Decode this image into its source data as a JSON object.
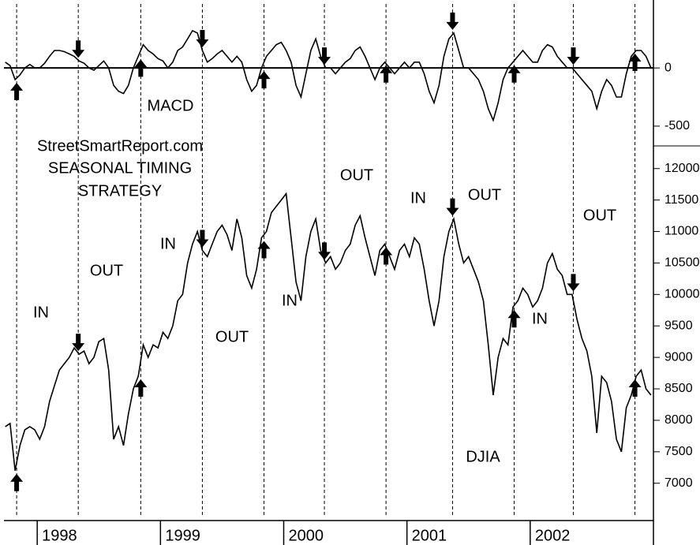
{
  "chart_data": {
    "type": "line",
    "annotations": [
      "StreetSmartReport.com",
      "SEASONAL TIMING",
      "STRATEGY",
      "IN",
      "OUT",
      "IN",
      "OUT",
      "IN",
      "OUT",
      "IN",
      "OUT",
      "IN",
      "OUT"
    ],
    "x": [
      1997.74,
      1997.78,
      1997.82,
      1997.86,
      1997.9,
      1997.94,
      1997.98,
      1998.02,
      1998.06,
      1998.1,
      1998.14,
      1998.18,
      1998.22,
      1998.26,
      1998.3,
      1998.34,
      1998.38,
      1998.42,
      1998.46,
      1998.5,
      1998.54,
      1998.58,
      1998.62,
      1998.66,
      1998.7,
      1998.74,
      1998.78,
      1998.82,
      1998.86,
      1998.9,
      1998.94,
      1998.98,
      1999.02,
      1999.06,
      1999.1,
      1999.14,
      1999.18,
      1999.22,
      1999.26,
      1999.3,
      1999.34,
      1999.38,
      1999.42,
      1999.46,
      1999.5,
      1999.54,
      1999.58,
      1999.62,
      1999.66,
      1999.7,
      1999.74,
      1999.78,
      1999.82,
      1999.86,
      1999.9,
      1999.94,
      1999.98,
      2000.02,
      2000.06,
      2000.1,
      2000.14,
      2000.18,
      2000.22,
      2000.26,
      2000.3,
      2000.34,
      2000.38,
      2000.42,
      2000.46,
      2000.5,
      2000.54,
      2000.58,
      2000.62,
      2000.66,
      2000.7,
      2000.74,
      2000.78,
      2000.82,
      2000.86,
      2000.9,
      2000.94,
      2000.98,
      2001.02,
      2001.06,
      2001.1,
      2001.14,
      2001.18,
      2001.22,
      2001.26,
      2001.3,
      2001.34,
      2001.38,
      2001.42,
      2001.46,
      2001.5,
      2001.54,
      2001.58,
      2001.62,
      2001.66,
      2001.7,
      2001.74,
      2001.78,
      2001.82,
      2001.86,
      2001.9,
      2001.94,
      2001.98,
      2002.02,
      2002.06,
      2002.1,
      2002.14,
      2002.18,
      2002.22,
      2002.26,
      2002.3,
      2002.34,
      2002.38,
      2002.42,
      2002.46,
      2002.5,
      2002.54,
      2002.58,
      2002.62,
      2002.66,
      2002.7,
      2002.74,
      2002.78,
      2002.82,
      2002.86,
      2002.9,
      2002.94,
      2002.98
    ],
    "series": [
      {
        "name": "DJIA",
        "color": "#000000",
        "values": [
          7900,
          7950,
          7200,
          7600,
          7850,
          7900,
          7850,
          7700,
          7900,
          8300,
          8550,
          8800,
          8900,
          9000,
          9150,
          9050,
          9100,
          8900,
          9000,
          9250,
          9300,
          8800,
          7700,
          7900,
          7600,
          8100,
          8500,
          8700,
          9200,
          9000,
          9200,
          9150,
          9400,
          9300,
          9500,
          9900,
          10000,
          10500,
          10800,
          11000,
          10700,
          10600,
          10800,
          11000,
          11100,
          10950,
          10700,
          11200,
          10900,
          10300,
          10100,
          10400,
          10900,
          11000,
          11300,
          11400,
          11500,
          11600,
          10900,
          10200,
          9900,
          10600,
          11000,
          11200,
          10700,
          10500,
          10600,
          10400,
          10500,
          10700,
          10800,
          11100,
          11250,
          10900,
          10600,
          10300,
          10700,
          10800,
          10600,
          10400,
          10700,
          10800,
          10600,
          10900,
          10800,
          10400,
          9900,
          9500,
          9900,
          10600,
          11000,
          11200,
          10800,
          10500,
          10600,
          10400,
          10200,
          9900,
          9200,
          8400,
          9000,
          9300,
          9200,
          9800,
          9900,
          10100,
          10000,
          9800,
          9900,
          10100,
          10500,
          10650,
          10400,
          10300,
          10000,
          10000,
          9600,
          9300,
          9100,
          8700,
          7800,
          8700,
          8600,
          8300,
          7700,
          7500,
          8200,
          8400,
          8700,
          8800,
          8500,
          8400
        ]
      },
      {
        "name": "MACD",
        "color": "#000000",
        "axis": "y2",
        "values": [
          50,
          20,
          -100,
          -60,
          0,
          30,
          0,
          0,
          40,
          100,
          150,
          150,
          140,
          120,
          100,
          60,
          40,
          0,
          -20,
          20,
          60,
          0,
          -150,
          -200,
          -220,
          -150,
          0,
          100,
          200,
          150,
          120,
          80,
          60,
          0,
          50,
          150,
          180,
          250,
          320,
          300,
          150,
          50,
          80,
          120,
          150,
          100,
          50,
          100,
          50,
          -100,
          -200,
          -150,
          0,
          100,
          150,
          200,
          220,
          150,
          50,
          -150,
          -250,
          -50,
          150,
          250,
          100,
          0,
          0,
          -50,
          0,
          50,
          80,
          150,
          180,
          100,
          0,
          -100,
          0,
          50,
          0,
          -50,
          0,
          50,
          0,
          50,
          50,
          -50,
          -200,
          -300,
          -150,
          100,
          250,
          300,
          150,
          0,
          0,
          -50,
          -100,
          -200,
          -350,
          -450,
          -300,
          -100,
          0,
          50,
          100,
          150,
          100,
          50,
          50,
          150,
          200,
          180,
          100,
          50,
          0,
          0,
          -50,
          -100,
          -150,
          -200,
          -350,
          -200,
          -100,
          -150,
          -250,
          -250,
          -50,
          100,
          150,
          150,
          100,
          0
        ]
      }
    ],
    "vlines": [
      1997.833,
      1998.333,
      1998.84,
      1999.34,
      1999.84,
      2000.33,
      2000.83,
      2001.37,
      2001.87,
      2002.35,
      2002.85
    ],
    "xlim": [
      1997.73,
      2003.0
    ],
    "xticks": [
      1998,
      1999,
      2000,
      2001,
      2002
    ],
    "ylim": [
      6470,
      12360
    ],
    "yticks": [
      7000,
      7500,
      8000,
      8500,
      9000,
      9500,
      10000,
      10500,
      11000,
      11500,
      12000
    ],
    "y2lim": [
      -670,
      550
    ],
    "y2ticks": [
      -500,
      0
    ]
  }
}
